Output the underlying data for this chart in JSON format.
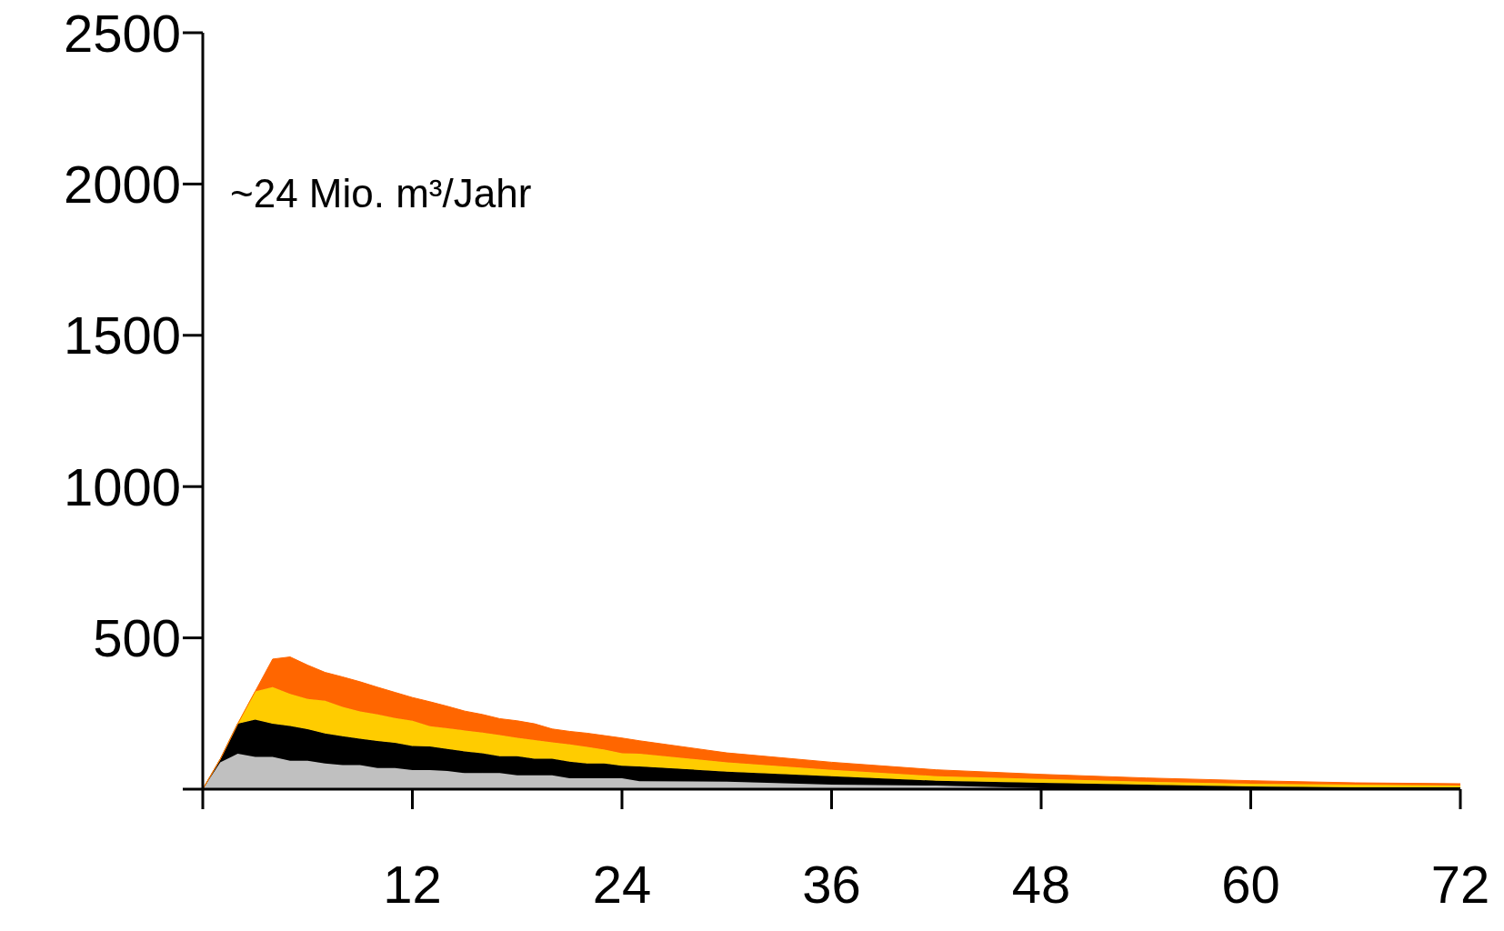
{
  "chart_data": {
    "type": "area",
    "stacked": true,
    "x": [
      0,
      1,
      2,
      3,
      4,
      5,
      6,
      7,
      8,
      9,
      10,
      11,
      12,
      13,
      14,
      15,
      16,
      17,
      18,
      19,
      20,
      21,
      22,
      23,
      24,
      25,
      30,
      36,
      42,
      48,
      54,
      60,
      66,
      72
    ],
    "series": [
      {
        "color": "#c0c0c0",
        "values": [
          0,
          89,
          117,
          107,
          107,
          94,
          94,
          85,
          80,
          80,
          70,
          70,
          63,
          63,
          60,
          53,
          53,
          53,
          46,
          46,
          46,
          36,
          36,
          36,
          36,
          26,
          25,
          15,
          12,
          3,
          3,
          3,
          0,
          3
        ]
      },
      {
        "color": "#000000",
        "values": [
          0,
          10,
          99,
          123,
          109,
          115,
          104,
          99,
          95,
          87,
          89,
          83,
          80,
          78,
          73,
          72,
          66,
          56,
          63,
          55,
          55,
          55,
          49,
          49,
          41,
          49,
          33,
          28,
          16,
          18,
          12,
          6,
          6,
          3
        ]
      },
      {
        "color": "#ffcc00",
        "values": [
          0,
          0,
          0,
          93,
          121,
          106,
          100,
          108,
          97,
          90,
          88,
          82,
          83,
          67,
          68,
          69,
          68,
          70,
          61,
          61,
          54,
          57,
          55,
          46,
          42,
          42,
          31,
          21,
          15,
          13,
          10,
          9,
          9,
          6
        ]
      },
      {
        "color": "#ff6600",
        "values": [
          0,
          0,
          0,
          0,
          93,
          122,
          112,
          94,
          99,
          98,
          90,
          85,
          77,
          81,
          73,
          64,
          60,
          54,
          56,
          54,
          44,
          43,
          45,
          46,
          50,
          43,
          31,
          25,
          21,
          15,
          12,
          10,
          6,
          6
        ]
      }
    ],
    "xlim": [
      0,
      72
    ],
    "xticks": [
      {
        "value": 0,
        "label": null
      },
      12,
      24,
      36,
      48,
      60,
      72
    ],
    "ylim": [
      0,
      2500
    ],
    "yticks": [
      {
        "value": 0,
        "label": null
      },
      500,
      1000,
      1500,
      2000,
      2500
    ],
    "annotations": [
      "~24 Mio. m³/Jahr"
    ],
    "grid": false,
    "legend": false
  }
}
